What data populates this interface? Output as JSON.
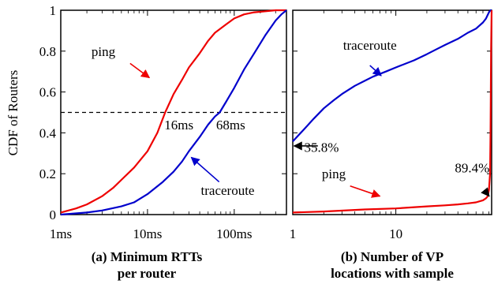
{
  "chart_data": [
    {
      "type": "line",
      "caption_line1": "(a) Minimum RTTs",
      "caption_line2": "per router",
      "ylabel": "CDF of Routers",
      "xscale": "log",
      "xlim": [
        1,
        400
      ],
      "ylim": [
        0,
        1
      ],
      "x_ticks": [
        1,
        10,
        100
      ],
      "x_tick_labels": [
        "1ms",
        "10ms",
        "100ms"
      ],
      "y_ticks": [
        0,
        0.2,
        0.4,
        0.6,
        0.8,
        1
      ],
      "y_tick_labels": [
        "0",
        "0.2",
        "0.4",
        "0.6",
        "0.8",
        "1"
      ],
      "reference_line": {
        "y": 0.5,
        "style": "dashed"
      },
      "colors": {
        "ping": "#ee0000",
        "traceroute": "#0000cc"
      },
      "series": [
        {
          "key": "ping",
          "x": [
            1,
            1.5,
            2,
            3,
            4,
            5,
            7,
            10,
            13,
            16,
            20,
            25,
            30,
            40,
            50,
            60,
            80,
            100,
            130,
            170,
            230,
            300,
            400
          ],
          "y": [
            0.01,
            0.03,
            0.05,
            0.09,
            0.13,
            0.17,
            0.23,
            0.31,
            0.4,
            0.5,
            0.59,
            0.66,
            0.72,
            0.79,
            0.85,
            0.89,
            0.93,
            0.96,
            0.98,
            0.99,
            0.995,
            1.0,
            1.0
          ]
        },
        {
          "key": "traceroute",
          "x": [
            1,
            2,
            3,
            5,
            7,
            10,
            15,
            20,
            25,
            30,
            40,
            50,
            60,
            68,
            80,
            100,
            130,
            170,
            230,
            300,
            350,
            400
          ],
          "y": [
            0.0,
            0.01,
            0.02,
            0.04,
            0.06,
            0.1,
            0.16,
            0.21,
            0.26,
            0.31,
            0.38,
            0.44,
            0.48,
            0.5,
            0.55,
            0.62,
            0.71,
            0.79,
            0.88,
            0.95,
            0.98,
            1.0
          ]
        }
      ],
      "annotations": [
        {
          "text": "ping",
          "series": "ping",
          "label_x": 3.1,
          "label_y": 0.8,
          "arrow_from_x": 6.3,
          "arrow_from_y": 0.74,
          "arrow_to_x": 10.5,
          "arrow_to_y": 0.67
        },
        {
          "text": "traceroute",
          "series": "traceroute",
          "label_x": 84,
          "label_y": 0.12,
          "arrow_from_x": 67,
          "arrow_from_y": 0.16,
          "arrow_to_x": 32,
          "arrow_to_y": 0.28
        },
        {
          "text": "16ms",
          "label_x": 23,
          "label_y": 0.44
        },
        {
          "text": "68ms",
          "label_x": 91,
          "label_y": 0.44
        }
      ]
    },
    {
      "type": "line",
      "caption_line1": "(b) Number of VP",
      "caption_line2": "locations with sample",
      "xscale": "log",
      "xlim": [
        1,
        85
      ],
      "ylim": [
        0,
        1
      ],
      "x_ticks": [
        1,
        10
      ],
      "x_tick_labels": [
        "1",
        "10"
      ],
      "colors": {
        "ping": "#ee0000",
        "traceroute": "#0000cc"
      },
      "series": [
        {
          "key": "traceroute",
          "x": [
            1,
            1.3,
            1.6,
            2,
            2.5,
            3,
            4,
            5,
            6,
            8,
            10,
            15,
            20,
            25,
            30,
            40,
            50,
            60,
            70,
            75,
            80,
            83,
            85
          ],
          "y": [
            0.358,
            0.42,
            0.47,
            0.52,
            0.56,
            0.59,
            0.63,
            0.655,
            0.675,
            0.7,
            0.72,
            0.755,
            0.785,
            0.81,
            0.83,
            0.86,
            0.89,
            0.91,
            0.94,
            0.96,
            0.99,
            1.0,
            1.0
          ]
        },
        {
          "key": "ping",
          "x": [
            1,
            2,
            5,
            10,
            20,
            30,
            40,
            50,
            60,
            70,
            75,
            78,
            80,
            82,
            83,
            84,
            85
          ],
          "y": [
            0.01,
            0.015,
            0.025,
            0.03,
            0.04,
            0.045,
            0.05,
            0.055,
            0.06,
            0.07,
            0.08,
            0.09,
            0.12,
            0.2,
            0.4,
            0.8,
            1.0
          ]
        }
      ],
      "annotations": [
        {
          "text": "traceroute",
          "series": "traceroute",
          "label_x": 5.6,
          "label_y": 0.83,
          "arrow_from_x": 5.6,
          "arrow_from_y": 0.73,
          "arrow_to_x": 7.2,
          "arrow_to_y": 0.68
        },
        {
          "text": "35.8%",
          "value": 0.358,
          "label_x": 1.9,
          "label_y": 0.33,
          "arrow_from_x": 1.75,
          "arrow_from_y": 0.336,
          "arrow_to_x": 1.03,
          "arrow_to_y": 0.336
        },
        {
          "text": "ping",
          "series": "ping",
          "label_x": 2.5,
          "label_y": 0.2,
          "arrow_from_x": 3.6,
          "arrow_from_y": 0.14,
          "arrow_to_x": 7.0,
          "arrow_to_y": 0.09
        },
        {
          "text": "89.4%",
          "value": 0.894,
          "label_x": 55,
          "label_y": 0.23,
          "arrow_from_x": 72,
          "arrow_from_y": 0.12,
          "arrow_to_x": 80.5,
          "arrow_to_y": 0.09
        }
      ]
    }
  ]
}
